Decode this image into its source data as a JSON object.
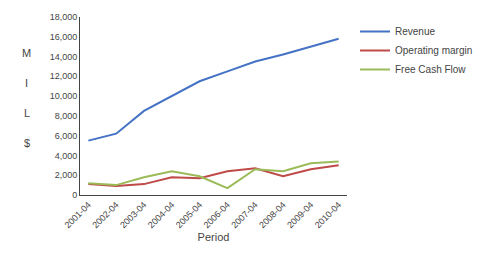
{
  "chart_data": {
    "type": "line",
    "xlabel": "Period",
    "categories": [
      "2001-04",
      "2002-04",
      "2003-04",
      "2004-04",
      "2005-04",
      "2006-04",
      "2007-04",
      "2008-04",
      "2009-04",
      "2010-04"
    ],
    "series": [
      {
        "name": "Revenue",
        "color": "#4472C4",
        "values": [
          5500,
          6200,
          8500,
          10000,
          11500,
          12500,
          13500,
          14200,
          15000,
          15800
        ]
      },
      {
        "name": "Operating margin",
        "color": "#BE4B48",
        "values": [
          1100,
          900,
          1100,
          1800,
          1700,
          2400,
          2700,
          1900,
          2600,
          3000
        ]
      },
      {
        "name": "Free Cash Flow",
        "color": "#9BBB59",
        "values": [
          1200,
          1000,
          1800,
          2400,
          1900,
          700,
          2600,
          2400,
          3200,
          3400
        ]
      }
    ],
    "ylim": [
      0,
      18000
    ],
    "yticks": [
      0,
      {
        "value": 2000,
        "label": "2,000"
      },
      {
        "value": 4000,
        "label": "4,000"
      },
      {
        "value": 6000,
        "label": "6,000"
      },
      {
        "value": 8000,
        "label": "8,000"
      },
      {
        "value": 10000,
        "label": "10,000"
      },
      {
        "value": 12000,
        "label": "12,000"
      },
      {
        "value": 14000,
        "label": "14,000"
      },
      {
        "value": 16000,
        "label": "16,000"
      },
      {
        "value": 18000,
        "label": "18,000"
      }
    ],
    "grid": false,
    "legend": "right",
    "annotations": [
      "M",
      "I",
      "L",
      "$"
    ]
  }
}
